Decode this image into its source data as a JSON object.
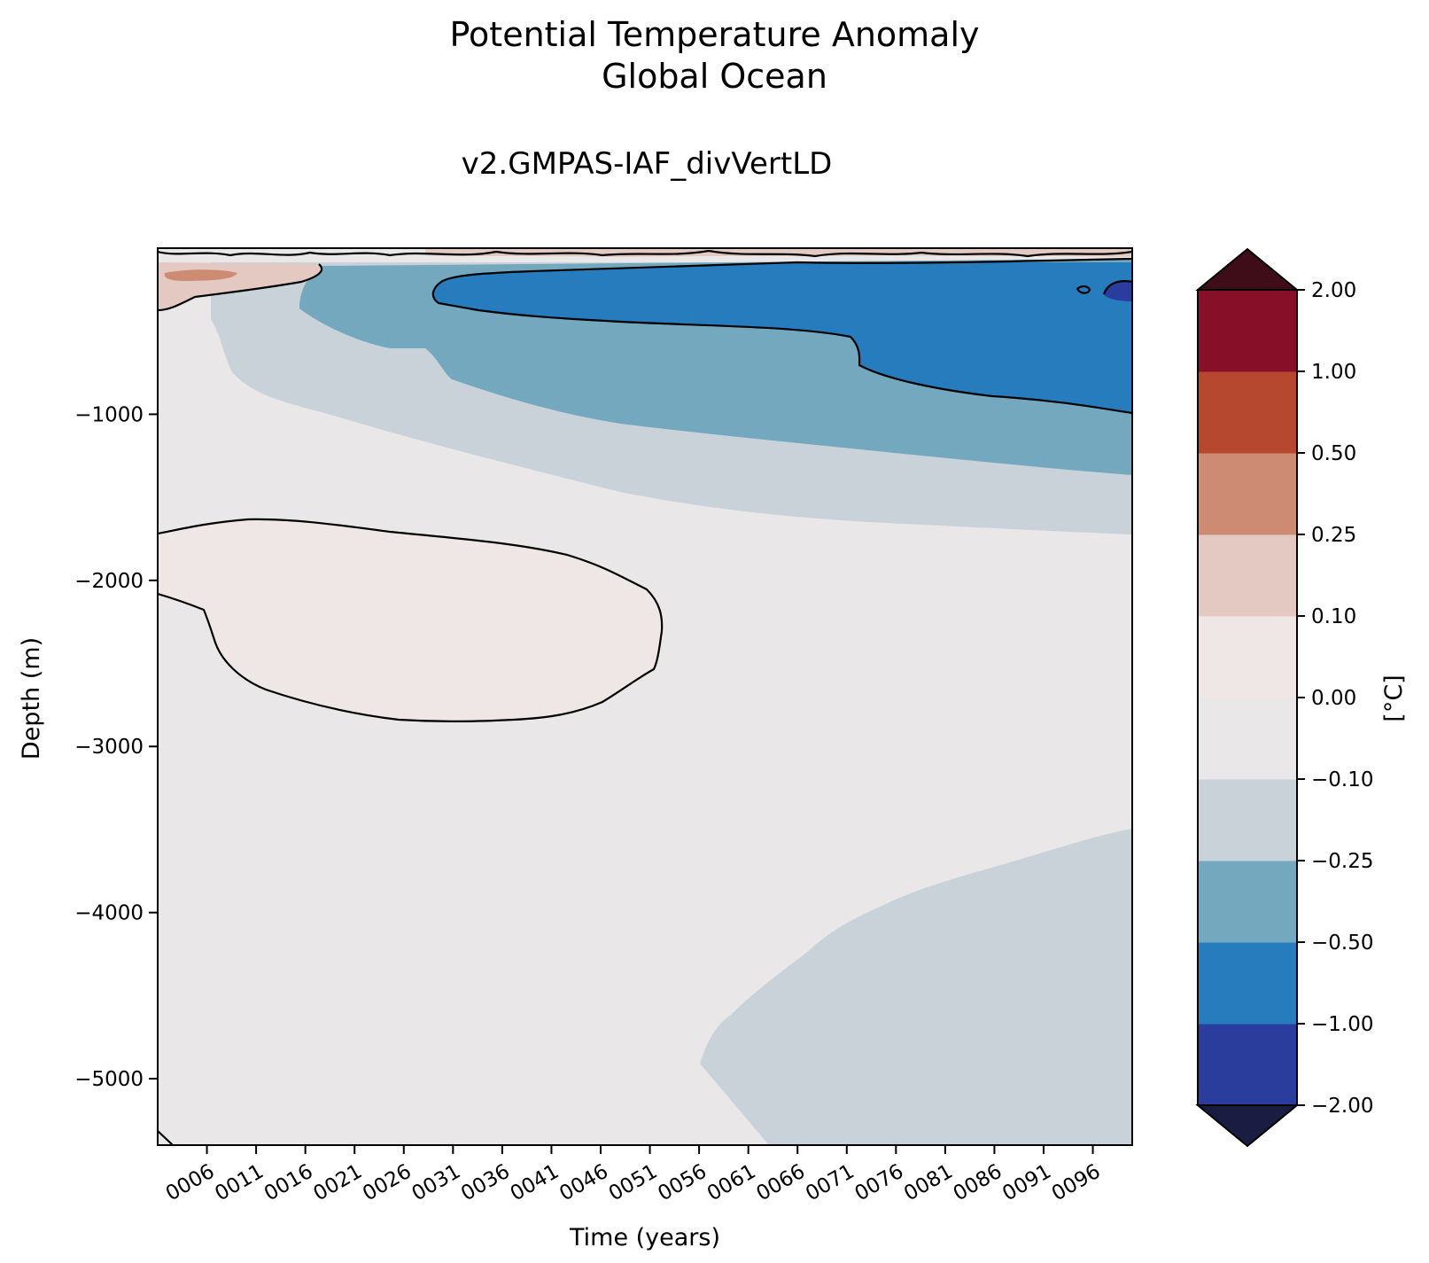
{
  "title_line1": "Potential Temperature Anomaly",
  "title_line2": "Global Ocean",
  "subtitle": "v2.GMPAS-IAF_divVertLD",
  "chart_data": {
    "type": "heatmap",
    "title": "Potential Temperature Anomaly Global Ocean",
    "subtitle": "v2.GMPAS-IAF_divVertLD",
    "xlabel": "Time (years)",
    "ylabel": "Depth (m)",
    "xlim": [
      1,
      100
    ],
    "ylim": [
      -5400,
      0
    ],
    "x_ticks": [
      6,
      11,
      16,
      21,
      26,
      31,
      36,
      41,
      46,
      51,
      56,
      61,
      66,
      71,
      76,
      81,
      86,
      91,
      96
    ],
    "x_tick_labels": [
      "0006",
      "0011",
      "0016",
      "0021",
      "0026",
      "0031",
      "0036",
      "0041",
      "0046",
      "0051",
      "0056",
      "0061",
      "0066",
      "0071",
      "0076",
      "0081",
      "0086",
      "0091",
      "0096"
    ],
    "y_ticks": [
      -1000,
      -2000,
      -3000,
      -4000,
      -5000
    ],
    "y_tick_labels": [
      "−1000",
      "−2000",
      "−3000",
      "−4000",
      "−5000"
    ],
    "colorbar": {
      "label": "[°C]",
      "levels": [
        -2.0,
        -1.0,
        -0.5,
        -0.25,
        -0.1,
        0.0,
        0.1,
        0.25,
        0.5,
        1.0,
        2.0
      ],
      "level_labels": [
        "−2.00",
        "−1.00",
        "−0.50",
        "−0.25",
        "−0.10",
        "0.00",
        "0.10",
        "0.25",
        "0.50",
        "1.00",
        "2.00"
      ],
      "colors": [
        "#2a3d9c",
        "#277cbd",
        "#73a8be",
        "#c9d2d8",
        "#e9e7e8",
        "#efe7e5",
        "#e4c9c2",
        "#cd8b73",
        "#b5482f",
        "#870f27"
      ],
      "under_color": "#1a1c42",
      "over_color": "#3f0d17",
      "extend": "both"
    },
    "regions": [
      {
        "range": [
          -0.25,
          -0.1
        ],
        "description": "shallow band 200-1700 m deepening with time"
      },
      {
        "range": [
          -0.5,
          -0.25
        ],
        "description": "band 200-1350 m from year ~14 onward"
      },
      {
        "range": [
          -1.0,
          -0.5
        ],
        "description": "core 200-1000 m from year ~31 onward, bounded by -0.5 contour"
      },
      {
        "range": [
          -2.0,
          -1.0
        ],
        "description": "small patch near 200-300 m at year ~98-100"
      },
      {
        "range": [
          0.0,
          0.1
        ],
        "description": "warm lens 1600-2850 m, years 1-52"
      },
      {
        "range": [
          -0.25,
          -0.1
        ],
        "description": "deep cooling below 3500 m after year ~56"
      }
    ]
  }
}
